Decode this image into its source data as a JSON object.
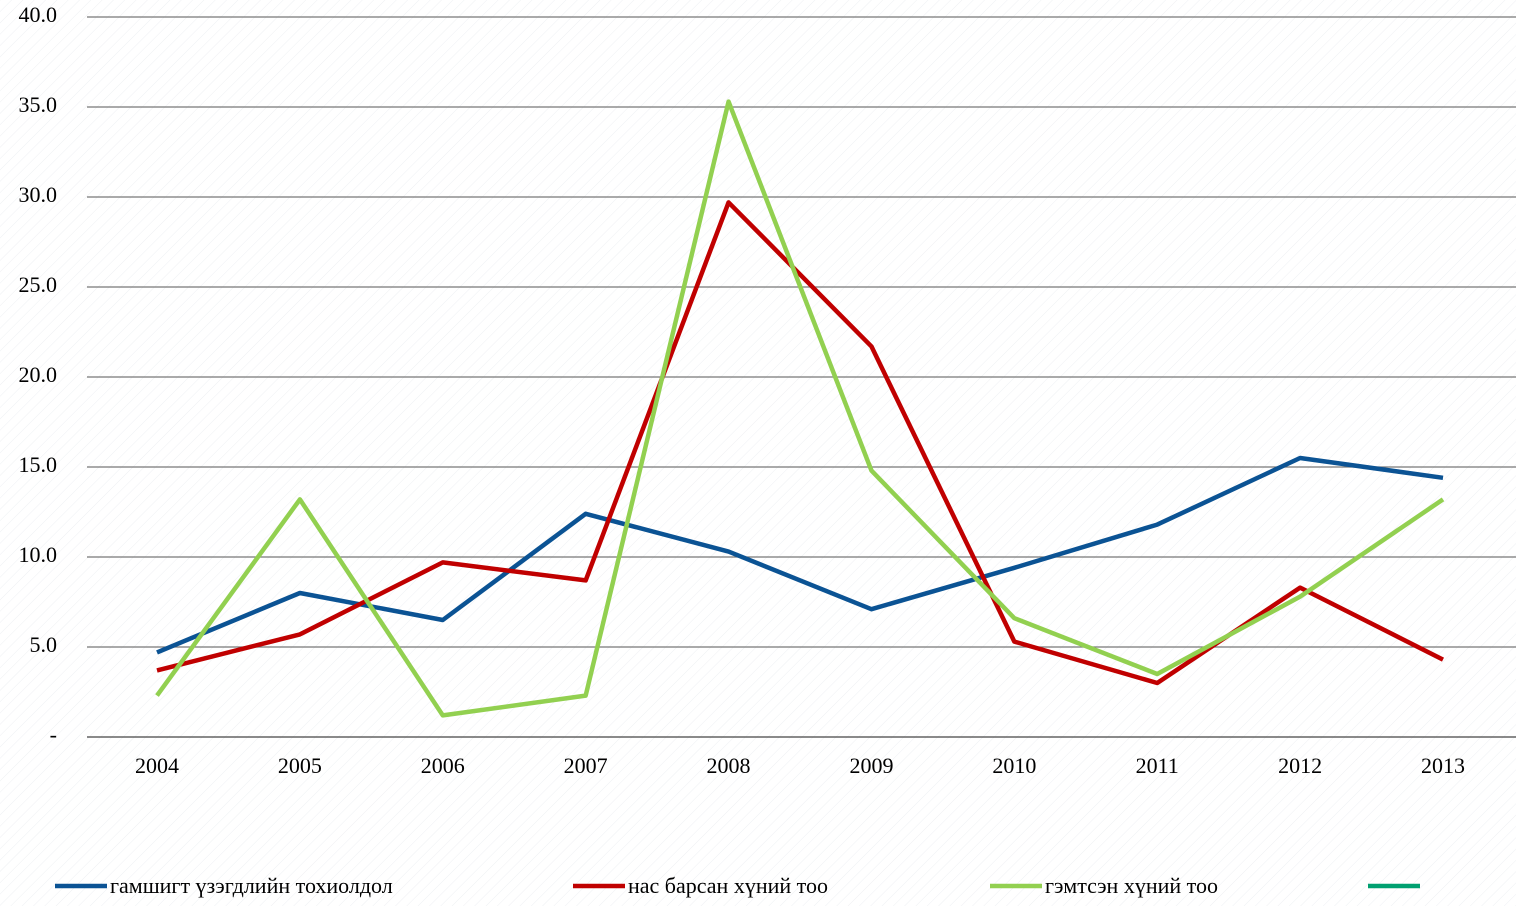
{
  "chart_data": {
    "type": "line",
    "categories": [
      "2004",
      "2005",
      "2006",
      "2007",
      "2008",
      "2009",
      "2010",
      "2011",
      "2012",
      "2013"
    ],
    "series": [
      {
        "name": "гамшигт үзэгдлийн тохиолдол",
        "color": "#0b5394",
        "values": [
          4.7,
          8.0,
          6.5,
          12.4,
          10.3,
          7.1,
          9.4,
          11.8,
          15.5,
          14.4
        ]
      },
      {
        "name": "нас барсан хүний тоо",
        "color": "#c00000",
        "values": [
          3.7,
          5.7,
          9.7,
          8.7,
          29.7,
          21.7,
          5.3,
          3.0,
          8.3,
          4.3
        ]
      },
      {
        "name": "гэмтсэн хүний тоо",
        "color": "#92d050",
        "values": [
          2.3,
          13.2,
          1.2,
          2.3,
          35.3,
          14.8,
          6.6,
          3.5,
          7.8,
          13.2
        ]
      },
      {
        "color": "#00a070",
        "values": [
          null,
          null,
          null,
          null,
          null,
          null,
          null,
          null,
          null,
          null
        ]
      }
    ],
    "ylim": [
      0,
      40
    ],
    "yticks": [
      {
        "value": 0,
        "label": "-"
      },
      {
        "value": 5,
        "label": "5.0"
      },
      {
        "value": 10,
        "label": "10.0"
      },
      {
        "value": 15,
        "label": "15.0"
      },
      {
        "value": 20,
        "label": "20.0"
      },
      {
        "value": 25,
        "label": "25.0"
      },
      {
        "value": 30,
        "label": "30.0"
      },
      {
        "value": 35,
        "label": "35.0"
      },
      {
        "value": 40,
        "label": "40.0"
      }
    ],
    "grid": true,
    "legend": "bottom"
  }
}
